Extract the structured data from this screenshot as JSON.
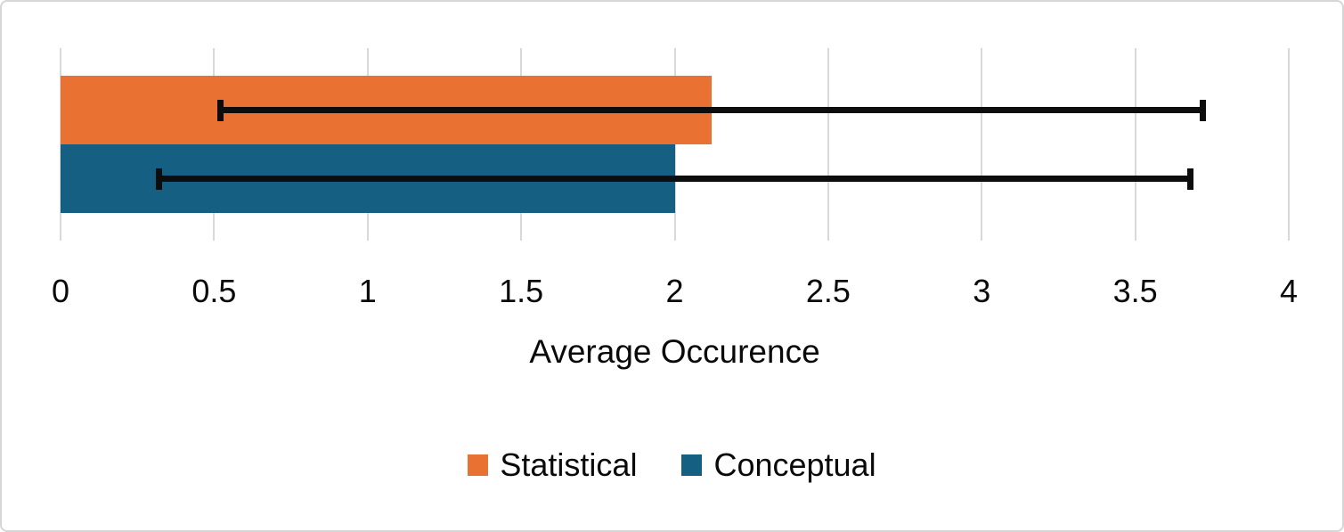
{
  "chart_data": {
    "type": "bar",
    "orientation": "horizontal",
    "title": "",
    "xlabel": "Average Occurence",
    "ylabel": "",
    "xlim": [
      0,
      4
    ],
    "xtick_values": [
      0,
      0.5,
      1,
      1.5,
      2,
      2.5,
      3,
      3.5,
      4
    ],
    "xtick_labels": [
      "0",
      "0.5",
      "1",
      "1.5",
      "2",
      "2.5",
      "3",
      "3.5",
      "4"
    ],
    "grid": "vertical-major-on",
    "legend_position": "bottom-center",
    "series": [
      {
        "name": "Statistical",
        "value": 2.12,
        "error_minus": 1.6,
        "error_plus": 1.6,
        "error_low": 0.52,
        "error_high": 3.72,
        "color": "#E97132"
      },
      {
        "name": "Conceptual",
        "value": 2.0,
        "error_minus": 1.68,
        "error_plus": 1.68,
        "error_low": 0.32,
        "error_high": 3.68,
        "color": "#156082"
      }
    ]
  },
  "colors": {
    "gridline": "#D9D9D9",
    "error_bar": "#0D0D0D",
    "text": "#0A0A0A",
    "card_border": "#D6D6D6",
    "background": "#FFFFFF"
  }
}
